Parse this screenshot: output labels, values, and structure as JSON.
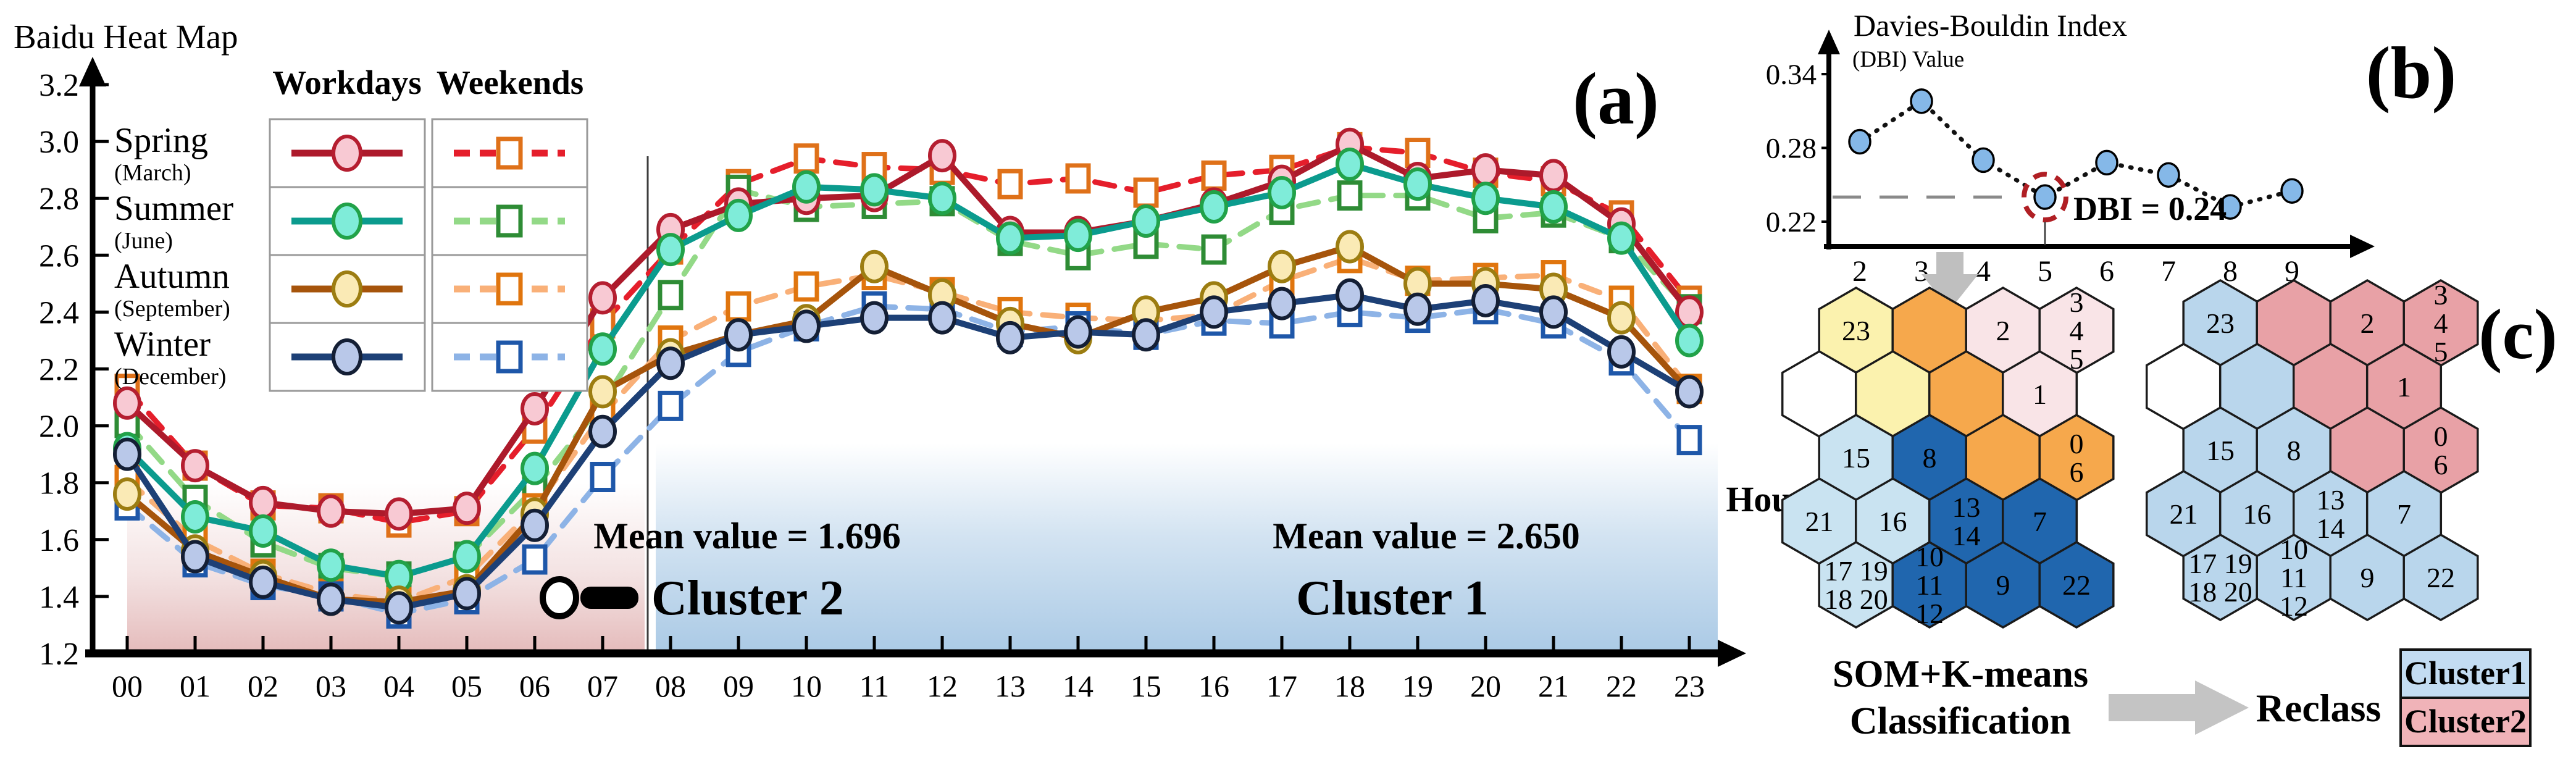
{
  "figure": {
    "panel_a_label": "(a)",
    "panel_b_label": "(b)",
    "panel_c_label": "(c)"
  },
  "panel_a": {
    "title": "Baidu Heat Map",
    "x_axis_label": "Hours",
    "legend": {
      "col_headers": [
        "Workdays",
        "Weekends"
      ],
      "rows": [
        {
          "season": "Spring",
          "month": "(March)"
        },
        {
          "season": "Summer",
          "month": "(June)"
        },
        {
          "season": "Autumn",
          "month": "(September)"
        },
        {
          "season": "Winter",
          "month": "(December)"
        }
      ]
    },
    "cluster2": {
      "mean_label": "Mean value = 1.696",
      "name": "Cluster 2"
    },
    "cluster1": {
      "mean_label": "Mean value = 2.650",
      "name": "Cluster 1"
    }
  },
  "panel_b": {
    "title": "Davies-Bouldin Index",
    "subtitle": "(DBI) Value",
    "annotation": "DBI = 0.24"
  },
  "panel_c": {
    "left_caption": [
      "SOM+K-means",
      "Classification"
    ],
    "arrow_label": "Reclass",
    "legend": [
      {
        "label": "Cluster1",
        "color": "#c3dcf2"
      },
      {
        "label": "Cluster2",
        "color": "#f0b3b8"
      }
    ]
  },
  "chart_data": [
    {
      "id": "baidu-heat-map",
      "type": "line",
      "title": "Baidu Heat Map",
      "xlabel": "Hours",
      "x": [
        "00",
        "01",
        "02",
        "03",
        "04",
        "05",
        "06",
        "07",
        "08",
        "09",
        "10",
        "11",
        "12",
        "13",
        "14",
        "15",
        "16",
        "17",
        "18",
        "19",
        "20",
        "21",
        "22",
        "23"
      ],
      "ylim": [
        1.2,
        3.2
      ],
      "yticks": [
        "1.2",
        "1.4",
        "1.6",
        "1.8",
        "2.0",
        "2.2",
        "2.4",
        "2.6",
        "2.8",
        "3.0",
        "3.2"
      ],
      "regions": [
        {
          "label": "Cluster 2",
          "x_range": [
            0,
            7.6
          ],
          "mean": 1.696,
          "color": "#c97a7a"
        },
        {
          "label": "Cluster 1",
          "x_range": [
            7.7,
            23.4
          ],
          "mean": 2.65,
          "color": "#7dafd7"
        }
      ],
      "series": [
        {
          "name": "Spring Workdays",
          "season": "Spring",
          "daytype": "Workdays",
          "style": "solid",
          "marker": "circle",
          "line_color": "#ad1a2b",
          "marker_fill": "#f8c9d3",
          "marker_edge": "#b51e30",
          "values": [
            2.08,
            1.86,
            1.73,
            1.7,
            1.69,
            1.71,
            2.06,
            2.45,
            2.69,
            2.78,
            2.8,
            2.81,
            2.95,
            2.68,
            2.68,
            2.72,
            2.78,
            2.86,
            2.99,
            2.87,
            2.9,
            2.88,
            2.71,
            2.4
          ]
        },
        {
          "name": "Spring Weekends",
          "season": "Spring",
          "daytype": "Weekends",
          "style": "dashed",
          "marker": "square",
          "line_color": "#e51e2b",
          "marker_fill": "#ffffff",
          "marker_edge": "#df7119",
          "values": [
            2.13,
            1.86,
            1.72,
            1.71,
            1.66,
            1.7,
            1.99,
            2.36,
            2.62,
            2.85,
            2.94,
            2.91,
            2.9,
            2.85,
            2.87,
            2.82,
            2.88,
            2.9,
            2.98,
            2.96,
            2.89,
            2.86,
            2.74,
            2.44
          ]
        },
        {
          "name": "Summer Workdays",
          "season": "Summer",
          "daytype": "Workdays",
          "style": "solid",
          "marker": "circle",
          "line_color": "#0b9b8e",
          "marker_fill": "#7fecd9",
          "marker_edge": "#21a249",
          "values": [
            1.92,
            1.68,
            1.63,
            1.51,
            1.47,
            1.54,
            1.85,
            2.27,
            2.62,
            2.74,
            2.84,
            2.83,
            2.8,
            2.66,
            2.67,
            2.72,
            2.77,
            2.82,
            2.92,
            2.85,
            2.8,
            2.77,
            2.66,
            2.3
          ]
        },
        {
          "name": "Summer Weekends",
          "season": "Summer",
          "daytype": "Weekends",
          "style": "dashed",
          "marker": "square",
          "line_color": "#93d987",
          "marker_fill": "#ffffff",
          "marker_edge": "#2e8c35",
          "values": [
            2.01,
            1.74,
            1.59,
            1.5,
            1.47,
            1.54,
            1.78,
            2.08,
            2.46,
            2.83,
            2.77,
            2.78,
            2.79,
            2.65,
            2.6,
            2.64,
            2.62,
            2.76,
            2.81,
            2.81,
            2.73,
            2.75,
            2.66,
            2.41
          ]
        },
        {
          "name": "Autumn Workdays",
          "season": "Autumn",
          "daytype": "Workdays",
          "style": "solid",
          "marker": "circle",
          "line_color": "#a6540b",
          "marker_fill": "#faeab5",
          "marker_edge": "#9c7d11",
          "values": [
            1.76,
            1.56,
            1.47,
            1.39,
            1.38,
            1.42,
            1.69,
            2.12,
            2.25,
            2.32,
            2.37,
            2.56,
            2.46,
            2.36,
            2.31,
            2.4,
            2.45,
            2.56,
            2.63,
            2.5,
            2.5,
            2.48,
            2.38,
            2.12
          ]
        },
        {
          "name": "Autumn Weekends",
          "season": "Autumn",
          "daytype": "Weekends",
          "style": "dashed",
          "marker": "square",
          "line_color": "#f9b078",
          "marker_fill": "#ffffff",
          "marker_edge": "#e0750e",
          "values": [
            1.81,
            1.6,
            1.48,
            1.41,
            1.38,
            1.47,
            1.71,
            2.04,
            2.3,
            2.42,
            2.49,
            2.53,
            2.47,
            2.4,
            2.38,
            2.37,
            2.39,
            2.51,
            2.59,
            2.51,
            2.52,
            2.53,
            2.44,
            2.13
          ]
        },
        {
          "name": "Winter Workdays",
          "season": "Winter",
          "daytype": "Workdays",
          "style": "solid",
          "marker": "circle",
          "line_color": "#1d4076",
          "marker_fill": "#b9c8e9",
          "marker_edge": "#141f35",
          "values": [
            1.9,
            1.54,
            1.45,
            1.39,
            1.36,
            1.41,
            1.65,
            1.98,
            2.22,
            2.32,
            2.35,
            2.38,
            2.38,
            2.31,
            2.33,
            2.32,
            2.4,
            2.43,
            2.46,
            2.41,
            2.44,
            2.4,
            2.26,
            2.12
          ]
        },
        {
          "name": "Winter Weekends",
          "season": "Winter",
          "daytype": "Weekends",
          "style": "dashed",
          "marker": "square",
          "line_color": "#8db3e6",
          "marker_fill": "#ffffff",
          "marker_edge": "#1e57a9",
          "values": [
            1.72,
            1.52,
            1.44,
            1.4,
            1.34,
            1.39,
            1.53,
            1.82,
            2.07,
            2.26,
            2.35,
            2.42,
            2.41,
            2.33,
            2.35,
            2.32,
            2.37,
            2.36,
            2.4,
            2.38,
            2.41,
            2.36,
            2.23,
            1.95
          ]
        }
      ]
    },
    {
      "id": "davies-bouldin-index",
      "type": "line",
      "title": "Davies-Bouldin Index",
      "ylabel": "(DBI) Value",
      "x": [
        2,
        3,
        4,
        5,
        6,
        7,
        8,
        9
      ],
      "values": [
        0.285,
        0.318,
        0.27,
        0.24,
        0.268,
        0.258,
        0.232,
        0.245
      ],
      "yticks": [
        "0.22",
        "0.28",
        "0.34"
      ],
      "ylim": [
        0.21,
        0.35
      ],
      "reference_line_y": 0.24,
      "highlight": {
        "x": 5,
        "value": 0.24,
        "label": "DBI = 0.24"
      },
      "marker_fill": "#85b8e8"
    }
  ],
  "som_maps": {
    "hex_colors": {
      "yellow": "#fbf2ae",
      "orange": "#f6a84c",
      "lightpink": "#f9e4e7",
      "darkblue": "#2066ae",
      "lightblue": "#c9e3f1",
      "white": "#ffffff",
      "blue1": "#b9d6ec",
      "pink2": "#e8a1a6"
    },
    "left": {
      "cells": [
        [
          {
            "c": "yellow",
            "t": [
              "23"
            ]
          },
          {
            "c": "orange",
            "t": []
          },
          {
            "c": "lightpink",
            "t": [
              "2"
            ]
          },
          {
            "c": "lightpink",
            "t": [
              "3",
              "4",
              "5"
            ]
          }
        ],
        [
          {
            "c": "white",
            "t": []
          },
          {
            "c": "yellow",
            "t": []
          },
          {
            "c": "orange",
            "t": []
          },
          {
            "c": "lightpink",
            "t": [
              "1"
            ]
          }
        ],
        [
          {
            "c": "lightblue",
            "t": [
              "15"
            ]
          },
          {
            "c": "darkblue",
            "t": [
              "8"
            ]
          },
          {
            "c": "orange",
            "t": []
          },
          {
            "c": "orange",
            "t": [
              "0",
              "6"
            ]
          }
        ],
        [
          {
            "c": "lightblue",
            "t": [
              "21"
            ]
          },
          {
            "c": "lightblue",
            "t": [
              "16"
            ]
          },
          {
            "c": "darkblue",
            "t": [
              "13",
              "14"
            ]
          },
          {
            "c": "darkblue",
            "t": [
              "7"
            ]
          }
        ],
        [
          {
            "c": "lightblue",
            "t": [
              "17 19",
              "18 20"
            ]
          },
          {
            "c": "darkblue",
            "t": [
              "10",
              "11",
              "12"
            ]
          },
          {
            "c": "darkblue",
            "t": [
              "9"
            ]
          },
          {
            "c": "darkblue",
            "t": [
              "22"
            ]
          }
        ]
      ]
    },
    "right": {
      "cells": [
        [
          {
            "c": "blue1",
            "t": [
              "23"
            ]
          },
          {
            "c": "pink2",
            "t": []
          },
          {
            "c": "pink2",
            "t": [
              "2"
            ]
          },
          {
            "c": "pink2",
            "t": [
              "3",
              "4",
              "5"
            ]
          }
        ],
        [
          {
            "c": "white",
            "t": []
          },
          {
            "c": "blue1",
            "t": []
          },
          {
            "c": "pink2",
            "t": []
          },
          {
            "c": "pink2",
            "t": [
              "1"
            ]
          }
        ],
        [
          {
            "c": "blue1",
            "t": [
              "15"
            ]
          },
          {
            "c": "blue1",
            "t": [
              "8"
            ]
          },
          {
            "c": "pink2",
            "t": []
          },
          {
            "c": "pink2",
            "t": [
              "0",
              "6"
            ]
          }
        ],
        [
          {
            "c": "blue1",
            "t": [
              "21"
            ]
          },
          {
            "c": "blue1",
            "t": [
              "16"
            ]
          },
          {
            "c": "blue1",
            "t": [
              "13",
              "14"
            ]
          },
          {
            "c": "blue1",
            "t": [
              "7"
            ]
          }
        ],
        [
          {
            "c": "blue1",
            "t": [
              "17 19",
              "18 20"
            ]
          },
          {
            "c": "blue1",
            "t": [
              "10",
              "11",
              "12"
            ]
          },
          {
            "c": "blue1",
            "t": [
              "9"
            ]
          },
          {
            "c": "blue1",
            "t": [
              "22"
            ]
          }
        ]
      ]
    }
  }
}
